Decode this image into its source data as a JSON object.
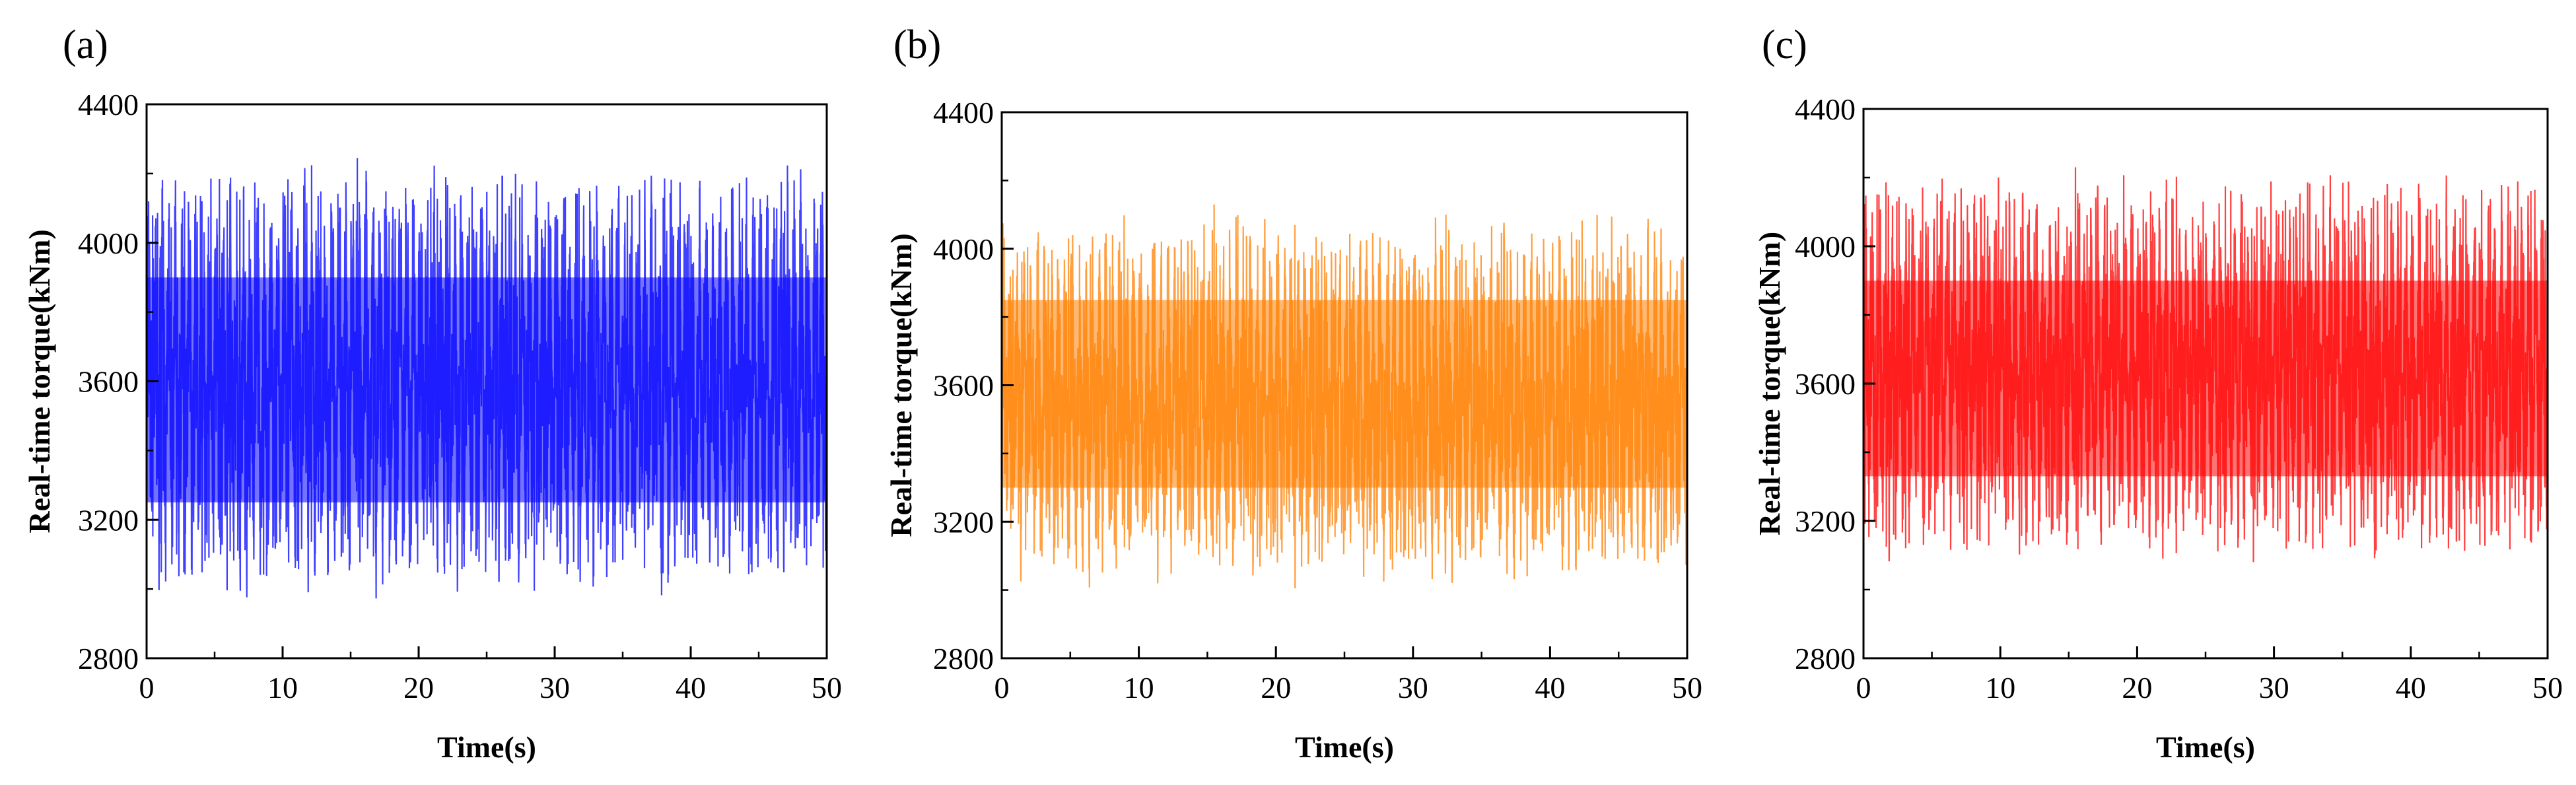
{
  "chart_data": [
    {
      "type": "line",
      "panel_label": "(a)",
      "xlabel": "Time(s)",
      "ylabel": "Real-time torque(kNm)",
      "xlim": [
        0,
        50
      ],
      "ylim": [
        2800,
        4400
      ],
      "xticks": [
        0,
        10,
        20,
        30,
        40,
        50
      ],
      "yticks": [
        2800,
        3200,
        3600,
        4000,
        4400
      ],
      "xtick_labels": [
        "0",
        "10",
        "20",
        "30",
        "40",
        "50"
      ],
      "ytick_labels": [
        "2800",
        "3200",
        "3600",
        "4000",
        "4400"
      ],
      "color": "#0000ff",
      "grid": false,
      "series": [
        {
          "signal": {
            "mean": 3600,
            "dominant_period_s": 0.5,
            "band_min": 3250,
            "band_max": 3900,
            "peak_max": 4245,
            "trough_min": 2995,
            "typical_peak": 4130,
            "typical_trough": 3100
          }
        }
      ]
    },
    {
      "type": "line",
      "panel_label": "(b)",
      "xlabel": "Time(s)",
      "ylabel": "Real-time torque(kNm)",
      "xlim": [
        0,
        50
      ],
      "ylim": [
        2800,
        4400
      ],
      "xticks": [
        0,
        10,
        20,
        30,
        40,
        50
      ],
      "yticks": [
        2800,
        3200,
        3600,
        4000,
        4400
      ],
      "xtick_labels": [
        "0",
        "10",
        "20",
        "30",
        "40",
        "50"
      ],
      "ytick_labels": [
        "2800",
        "3200",
        "3600",
        "4000",
        "4400"
      ],
      "color": "#ff7f00",
      "grid": false,
      "series": [
        {
          "signal": {
            "mean": 3540,
            "dominant_period_s": 0.5,
            "band_min": 3300,
            "band_max": 3850,
            "peak_max": 4130,
            "trough_min": 3060,
            "typical_peak": 4040,
            "typical_trough": 3140
          }
        }
      ]
    },
    {
      "type": "line",
      "panel_label": "(c)",
      "xlabel": "Time(s)",
      "ylabel": "Real-time torque(kNm)",
      "xlim": [
        0,
        50
      ],
      "ylim": [
        2800,
        4400
      ],
      "xticks": [
        0,
        10,
        20,
        30,
        40,
        50
      ],
      "yticks": [
        2800,
        3200,
        3600,
        4000,
        4400
      ],
      "xtick_labels": [
        "0",
        "10",
        "20",
        "30",
        "40",
        "50"
      ],
      "ytick_labels": [
        "2800",
        "3200",
        "3600",
        "4000",
        "4400"
      ],
      "color": "#ff0000",
      "grid": false,
      "series": [
        {
          "signal": {
            "mean": 3640,
            "dominant_period_s": 0.5,
            "band_min": 3330,
            "band_max": 3900,
            "peak_max": 4230,
            "trough_min": 3080,
            "typical_peak": 4150,
            "typical_trough": 3170
          }
        }
      ]
    }
  ]
}
